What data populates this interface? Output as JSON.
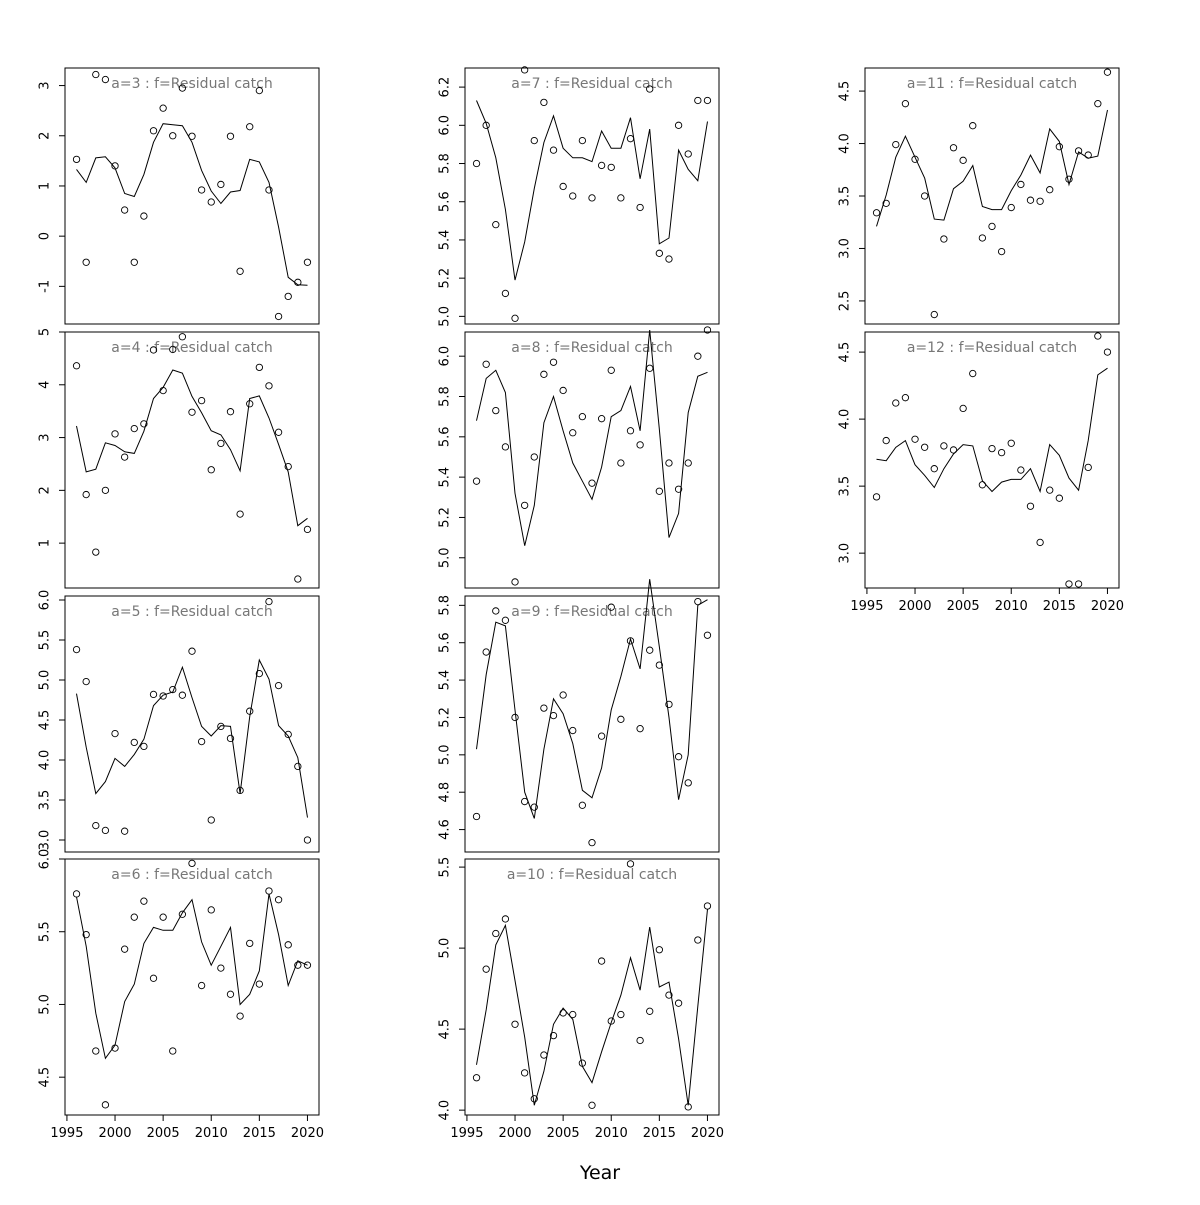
{
  "xlabel": "Year",
  "chart_data": [
    {
      "type": "scatter",
      "title": "a=3  :  f=Residual catch",
      "yticks": [
        -1,
        0,
        1,
        2,
        3
      ],
      "ylim": [
        -1.75,
        3.35
      ],
      "x": [
        1996,
        1997,
        1998,
        1999,
        2000,
        2001,
        2002,
        2003,
        2004,
        2005,
        2006,
        2007,
        2008,
        2009,
        2010,
        2011,
        2012,
        2013,
        2014,
        2015,
        2016,
        2017,
        2018,
        2019,
        2020
      ],
      "observed": [
        1.53,
        -0.52,
        3.22,
        3.12,
        1.4,
        0.52,
        -0.52,
        0.4,
        2.1,
        2.55,
        2.0,
        2.95,
        1.99,
        0.92,
        0.68,
        1.03,
        1.99,
        -0.7,
        2.18,
        2.9,
        0.92,
        -1.6,
        -1.2,
        -0.92,
        -0.52
      ],
      "fitted": [
        1.33,
        1.07,
        1.56,
        1.58,
        1.36,
        0.85,
        0.79,
        1.23,
        1.87,
        2.24,
        2.22,
        2.2,
        1.87,
        1.31,
        0.9,
        0.65,
        0.88,
        0.91,
        1.53,
        1.48,
        1.07,
        0.18,
        -0.82,
        -0.97,
        -0.98
      ]
    },
    {
      "type": "scatter",
      "title": "a=4  :  f=Residual catch",
      "yticks": [
        1,
        2,
        3,
        4,
        5
      ],
      "ylim": [
        0.15,
        5.0
      ],
      "x": [
        1996,
        1997,
        1998,
        1999,
        2000,
        2001,
        2002,
        2003,
        2004,
        2005,
        2006,
        2007,
        2008,
        2009,
        2010,
        2011,
        2012,
        2013,
        2014,
        2015,
        2016,
        2017,
        2018,
        2019,
        2020
      ],
      "observed": [
        4.36,
        1.92,
        0.83,
        2.0,
        3.07,
        2.63,
        3.17,
        3.26,
        4.66,
        3.89,
        4.67,
        4.91,
        3.48,
        3.7,
        2.39,
        2.89,
        3.49,
        1.55,
        3.64,
        4.33,
        3.98,
        3.1,
        2.45,
        0.32,
        1.26
      ],
      "fitted": [
        3.22,
        2.35,
        2.4,
        2.9,
        2.85,
        2.73,
        2.7,
        3.12,
        3.74,
        3.95,
        4.28,
        4.22,
        3.78,
        3.47,
        3.13,
        3.05,
        2.77,
        2.37,
        3.74,
        3.79,
        3.37,
        2.87,
        2.35,
        1.33,
        1.47
      ]
    },
    {
      "type": "scatter",
      "title": "a=5  :  f=Residual catch",
      "yticks": [
        3.0,
        3.5,
        4.0,
        4.5,
        5.0,
        5.5,
        6.0
      ],
      "ylim": [
        2.85,
        6.05
      ],
      "x": [
        1996,
        1997,
        1998,
        1999,
        2000,
        2001,
        2002,
        2003,
        2004,
        2005,
        2006,
        2007,
        2008,
        2009,
        2010,
        2011,
        2012,
        2013,
        2014,
        2015,
        2016,
        2017,
        2018,
        2019,
        2020
      ],
      "observed": [
        5.38,
        4.98,
        3.18,
        3.12,
        4.33,
        3.11,
        4.22,
        4.17,
        4.82,
        4.8,
        4.88,
        4.81,
        5.36,
        4.23,
        3.25,
        4.42,
        4.27,
        3.62,
        4.61,
        5.08,
        5.98,
        4.93,
        4.32,
        3.92,
        3.0
      ],
      "fitted": [
        4.83,
        4.16,
        3.58,
        3.73,
        4.02,
        3.92,
        4.07,
        4.26,
        4.68,
        4.81,
        4.85,
        5.16,
        4.78,
        4.42,
        4.3,
        4.43,
        4.42,
        3.58,
        4.54,
        5.25,
        5.01,
        4.43,
        4.3,
        4.03,
        3.28
      ]
    },
    {
      "type": "scatter",
      "title": "a=6  :  f=Residual catch",
      "yticks": [
        4.5,
        5.0,
        5.5,
        6.0
      ],
      "ylim": [
        4.24,
        6.0
      ],
      "x": [
        1996,
        1997,
        1998,
        1999,
        2000,
        2001,
        2002,
        2003,
        2004,
        2005,
        2006,
        2007,
        2008,
        2009,
        2010,
        2011,
        2012,
        2013,
        2014,
        2015,
        2016,
        2017,
        2018,
        2019,
        2020
      ],
      "observed": [
        5.76,
        5.48,
        4.68,
        4.31,
        4.7,
        5.38,
        5.6,
        5.71,
        5.18,
        5.6,
        4.68,
        5.62,
        5.97,
        5.13,
        5.65,
        5.25,
        5.07,
        4.92,
        5.42,
        5.14,
        5.78,
        5.72,
        5.41,
        5.27,
        5.27
      ],
      "fitted": [
        5.74,
        5.4,
        4.94,
        4.63,
        4.72,
        5.02,
        5.14,
        5.42,
        5.53,
        5.51,
        5.51,
        5.63,
        5.72,
        5.43,
        5.27,
        5.4,
        5.53,
        5.0,
        5.07,
        5.23,
        5.76,
        5.48,
        5.13,
        5.3,
        5.27
      ]
    },
    {
      "type": "scatter",
      "title": "a=7  :  f=Residual catch",
      "yticks": [
        5.0,
        5.2,
        5.4,
        5.6,
        5.8,
        6.0,
        6.2
      ],
      "ylim": [
        4.96,
        6.3
      ],
      "x": [
        1996,
        1997,
        1998,
        1999,
        2000,
        2001,
        2002,
        2003,
        2004,
        2005,
        2006,
        2007,
        2008,
        2009,
        2010,
        2011,
        2012,
        2013,
        2014,
        2015,
        2016,
        2017,
        2018,
        2019,
        2020
      ],
      "observed": [
        5.8,
        6.0,
        5.48,
        5.12,
        4.99,
        6.29,
        5.92,
        6.12,
        5.87,
        5.68,
        5.63,
        5.92,
        5.62,
        5.79,
        5.78,
        5.62,
        5.93,
        5.57,
        6.19,
        5.33,
        5.3,
        6.0,
        5.85,
        6.13,
        6.13
      ],
      "fitted": [
        6.13,
        6.01,
        5.83,
        5.56,
        5.19,
        5.39,
        5.67,
        5.91,
        6.05,
        5.88,
        5.83,
        5.83,
        5.81,
        5.97,
        5.88,
        5.88,
        6.04,
        5.72,
        5.98,
        5.38,
        5.41,
        5.87,
        5.77,
        5.71,
        6.02
      ]
    },
    {
      "type": "scatter",
      "title": "a=8  :  f=Residual catch",
      "yticks": [
        5.0,
        5.2,
        5.4,
        5.6,
        5.8,
        6.0
      ],
      "ylim": [
        4.85,
        6.12
      ],
      "x": [
        1996,
        1997,
        1998,
        1999,
        2000,
        2001,
        2002,
        2003,
        2004,
        2005,
        2006,
        2007,
        2008,
        2009,
        2010,
        2011,
        2012,
        2013,
        2014,
        2015,
        2016,
        2017,
        2018,
        2019,
        2020
      ],
      "observed": [
        5.38,
        5.96,
        5.73,
        5.55,
        4.88,
        5.26,
        5.5,
        5.91,
        5.97,
        5.83,
        5.62,
        5.7,
        5.37,
        5.69,
        5.93,
        5.47,
        5.63,
        5.56,
        5.94,
        5.33,
        5.47,
        5.34,
        5.47,
        6.0,
        6.13
      ],
      "fitted": [
        5.68,
        5.89,
        5.93,
        5.82,
        5.32,
        5.06,
        5.26,
        5.67,
        5.8,
        5.63,
        5.47,
        5.38,
        5.29,
        5.45,
        5.7,
        5.73,
        5.85,
        5.63,
        6.13,
        5.64,
        5.1,
        5.22,
        5.72,
        5.9,
        5.92
      ]
    },
    {
      "type": "scatter",
      "title": "a=9  :  f=Residual catch",
      "yticks": [
        4.6,
        4.8,
        5.0,
        5.2,
        5.4,
        5.6,
        5.8
      ],
      "ylim": [
        4.48,
        5.85
      ],
      "x": [
        1996,
        1997,
        1998,
        1999,
        2000,
        2001,
        2002,
        2003,
        2004,
        2005,
        2006,
        2007,
        2008,
        2009,
        2010,
        2011,
        2012,
        2013,
        2014,
        2015,
        2016,
        2017,
        2018,
        2019,
        2020
      ],
      "observed": [
        4.67,
        5.55,
        5.77,
        5.72,
        5.2,
        4.75,
        4.72,
        5.25,
        5.21,
        5.32,
        5.13,
        4.73,
        4.53,
        5.1,
        5.79,
        5.19,
        5.61,
        5.14,
        5.56,
        5.48,
        5.27,
        4.99,
        4.85,
        5.82,
        5.64
      ],
      "fitted": [
        5.03,
        5.43,
        5.71,
        5.69,
        5.24,
        4.8,
        4.66,
        5.03,
        5.3,
        5.22,
        5.06,
        4.81,
        4.77,
        4.93,
        5.24,
        5.42,
        5.62,
        5.46,
        5.94,
        5.58,
        5.2,
        4.76,
        5.0,
        5.8,
        5.83
      ]
    },
    {
      "type": "scatter",
      "title": "a=10  :  f=Residual catch",
      "yticks": [
        4.0,
        4.5,
        5.0,
        5.5
      ],
      "ylim": [
        3.97,
        5.55
      ],
      "x": [
        1996,
        1997,
        1998,
        1999,
        2000,
        2001,
        2002,
        2003,
        2004,
        2005,
        2006,
        2007,
        2008,
        2009,
        2010,
        2011,
        2012,
        2013,
        2014,
        2015,
        2016,
        2017,
        2018,
        2019,
        2020
      ],
      "observed": [
        4.2,
        4.87,
        5.09,
        5.18,
        4.53,
        4.23,
        4.07,
        4.34,
        4.46,
        4.6,
        4.59,
        4.29,
        4.03,
        4.92,
        4.55,
        4.59,
        5.52,
        4.43,
        4.61,
        4.99,
        4.71,
        4.66,
        4.02,
        5.05,
        5.26
      ],
      "fitted": [
        4.28,
        4.62,
        5.02,
        5.14,
        4.8,
        4.45,
        4.03,
        4.24,
        4.53,
        4.63,
        4.56,
        4.27,
        4.17,
        4.36,
        4.54,
        4.71,
        4.94,
        4.74,
        5.13,
        4.76,
        4.79,
        4.44,
        4.03,
        4.64,
        5.24
      ]
    },
    {
      "type": "scatter",
      "title": "a=11  :  f=Residual catch",
      "yticks": [
        2.5,
        3.0,
        3.5,
        4.0,
        4.5
      ],
      "ylim": [
        2.28,
        4.72
      ],
      "x": [
        1996,
        1997,
        1998,
        1999,
        2000,
        2001,
        2002,
        2003,
        2004,
        2005,
        2006,
        2007,
        2008,
        2009,
        2010,
        2011,
        2012,
        2013,
        2014,
        2015,
        2016,
        2017,
        2018,
        2019,
        2020
      ],
      "observed": [
        3.34,
        3.43,
        3.99,
        4.38,
        3.85,
        3.5,
        2.37,
        3.09,
        3.96,
        3.84,
        4.17,
        3.1,
        3.21,
        2.97,
        3.39,
        3.61,
        3.46,
        3.45,
        3.56,
        3.97,
        3.66,
        3.93,
        3.89,
        4.38,
        4.68
      ],
      "fitted": [
        3.21,
        3.51,
        3.87,
        4.07,
        3.87,
        3.67,
        3.28,
        3.27,
        3.57,
        3.64,
        3.79,
        3.4,
        3.37,
        3.37,
        3.55,
        3.7,
        3.89,
        3.72,
        4.14,
        4.02,
        3.61,
        3.92,
        3.86,
        3.88,
        4.32
      ]
    },
    {
      "type": "scatter",
      "title": "a=12  :  f=Residual catch",
      "yticks": [
        3.0,
        3.5,
        4.0,
        4.5
      ],
      "ylim": [
        2.74,
        4.65
      ],
      "x": [
        1996,
        1997,
        1998,
        1999,
        2000,
        2001,
        2002,
        2003,
        2004,
        2005,
        2006,
        2007,
        2008,
        2009,
        2010,
        2011,
        2012,
        2013,
        2014,
        2015,
        2016,
        2017,
        2018,
        2019,
        2020
      ],
      "observed": [
        3.42,
        3.84,
        4.12,
        4.16,
        3.85,
        3.79,
        3.63,
        3.8,
        3.77,
        4.08,
        4.34,
        3.51,
        3.78,
        3.75,
        3.82,
        3.62,
        3.35,
        3.08,
        3.47,
        3.41,
        2.77,
        2.77,
        3.64,
        4.62,
        4.5
      ],
      "fitted": [
        3.7,
        3.69,
        3.79,
        3.84,
        3.66,
        3.58,
        3.49,
        3.63,
        3.74,
        3.81,
        3.8,
        3.54,
        3.46,
        3.53,
        3.55,
        3.55,
        3.63,
        3.46,
        3.81,
        3.73,
        3.56,
        3.47,
        3.84,
        4.33,
        4.38
      ]
    }
  ]
}
